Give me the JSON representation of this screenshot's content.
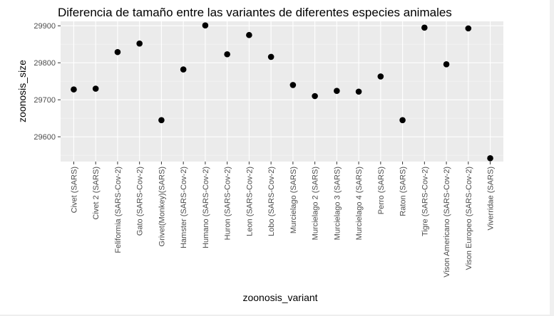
{
  "chart_data": {
    "type": "scatter",
    "title": "Diferencia de tamaño entre las variantes de diferentes especies animales",
    "xlabel": "zoonosis_variant",
    "ylabel": "zoonosis_size",
    "categories": [
      "Civet (SARS)",
      "Civet 2 (SARS)",
      "Feliformia (SARS-Cov-2)",
      "Gato (SARS-Cov-2)",
      "Grivet(Monkey)(SARS)",
      "Hamster (SARS-Cov-2)",
      "Humano (SARS-Cov-2)",
      "Huron (SARS-Cov-2)",
      "Leon (SARS-Cov-2)",
      "Lobo (SARS-Cov-2)",
      "Murcielago (SARS)",
      "Murcielago 2 (SARS)",
      "Murcielago 3 (SARS)",
      "Murcielago 4 (SARS)",
      "Perro (SARS)",
      "Raton (SARS)",
      "Tigre (SARS-Cov-2)",
      "Vison Americano (SARS-Cov-2)",
      "Vison Europeo (SARS-Cov-2)",
      "Viverridae (SARS)"
    ],
    "values": [
      29728,
      29730,
      29829,
      29852,
      29645,
      29782,
      29901,
      29823,
      29875,
      29816,
      29740,
      29710,
      29724,
      29722,
      29763,
      29645,
      29895,
      29796,
      29893,
      29542
    ],
    "yticks": [
      29600,
      29700,
      29800,
      29900
    ],
    "ylim": [
      29533,
      29912
    ],
    "grid": true,
    "legend": "none",
    "colors": {
      "panel_background": "#ebebeb",
      "grid_major": "#ffffff",
      "grid_minor": "#f5f5f5",
      "point": "#000000",
      "tick_text": "#4d4d4d"
    }
  }
}
